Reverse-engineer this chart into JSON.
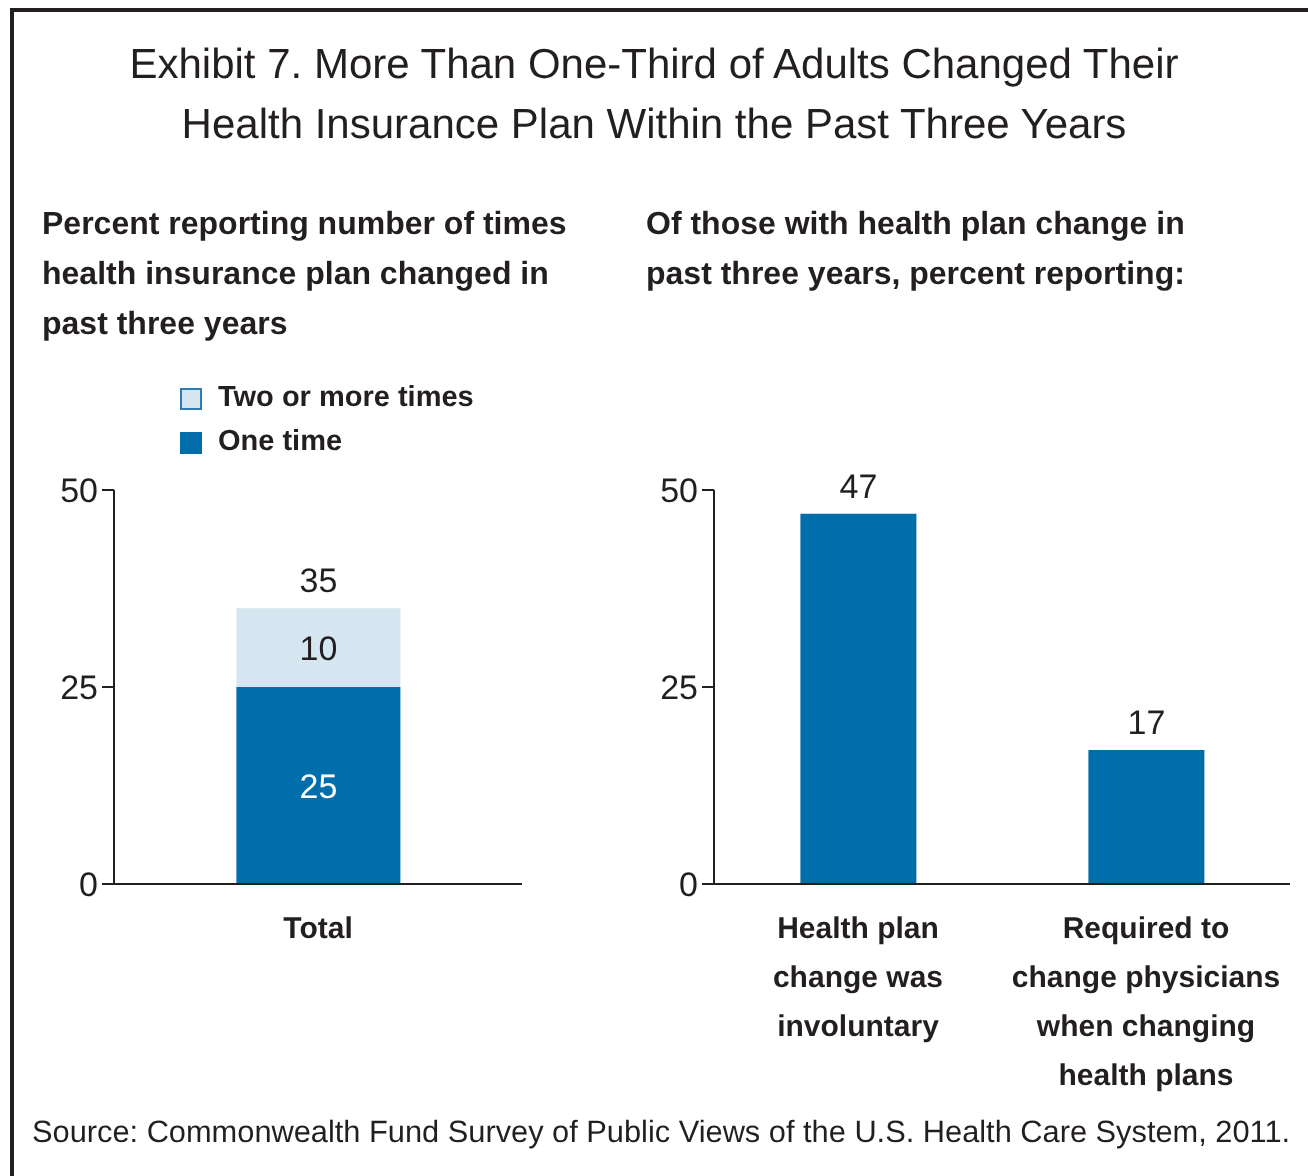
{
  "chart_data": [
    {
      "type": "bar",
      "title": "Exhibit 7. More Than One-Third of Adults Changed Their Health Insurance Plan Within the Past Three Years",
      "subtitle": "Percent reporting number of times health insurance plan changed in past three years",
      "categories": [
        "Total"
      ],
      "stacked": true,
      "series": [
        {
          "name": "One time",
          "color": "#006eab",
          "values": [
            25
          ]
        },
        {
          "name": "Two or more times",
          "color": "#d5e6f1",
          "values": [
            10
          ]
        }
      ],
      "ylim": [
        0,
        50
      ],
      "yticks": [
        0,
        25,
        50
      ],
      "data_labels": true,
      "totals": [
        "35"
      ],
      "legend": "top"
    },
    {
      "type": "bar",
      "subtitle": "Of those with health plan change in past three years, percent reporting:",
      "categories": [
        "Health plan change was involuntary",
        "Required to change physicians when changing health plans"
      ],
      "values": [
        47,
        17
      ],
      "color": "#006eab",
      "ylim": [
        0,
        50
      ],
      "yticks": [
        0,
        25,
        50
      ],
      "data_labels": true,
      "annotations": [
        "Source: Commonwealth Fund Survey of Public Views of the U.S. Health Care System, 2011."
      ]
    }
  ]
}
